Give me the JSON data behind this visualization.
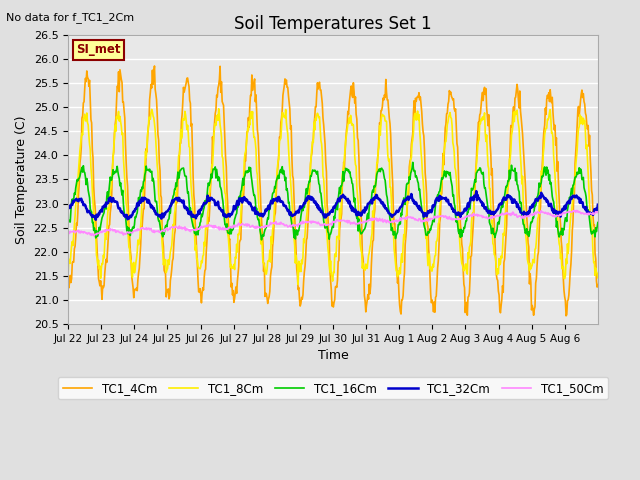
{
  "title": "Soil Temperatures Set 1",
  "top_left_text": "No data for f_TC1_2Cm",
  "xlabel": "Time",
  "ylabel": "Soil Temperature (C)",
  "ylim": [
    20.5,
    26.5
  ],
  "yticks": [
    20.5,
    21.0,
    21.5,
    22.0,
    22.5,
    23.0,
    23.5,
    24.0,
    24.5,
    25.0,
    25.5,
    26.0,
    26.5
  ],
  "bg_color": "#e0e0e0",
  "plot_bg_color": "#e8e8e8",
  "grid_color": "#ffffff",
  "n_days": 16,
  "lines": {
    "TC1_4Cm": {
      "color": "#FFA500",
      "lw": 1.2
    },
    "TC1_8Cm": {
      "color": "#FFEE00",
      "lw": 1.2
    },
    "TC1_16Cm": {
      "color": "#00CC00",
      "lw": 1.2
    },
    "TC1_32Cm": {
      "color": "#0000CC",
      "lw": 1.8
    },
    "TC1_50Cm": {
      "color": "#FF88FF",
      "lw": 1.2
    }
  },
  "xtick_labels": [
    "Jul 22",
    "Jul 23",
    "Jul 24",
    "Jul 25",
    "Jul 26",
    "Jul 27",
    "Jul 28",
    "Jul 29",
    "Jul 30",
    "Jul 31",
    "Aug 1",
    "Aug 2",
    "Aug 3",
    "Aug 4",
    "Aug 5",
    "Aug 6"
  ],
  "simet_box": {
    "text": "SI_met",
    "facecolor": "#FFFF99",
    "edgecolor": "#8B0000",
    "textcolor": "#8B0000"
  }
}
